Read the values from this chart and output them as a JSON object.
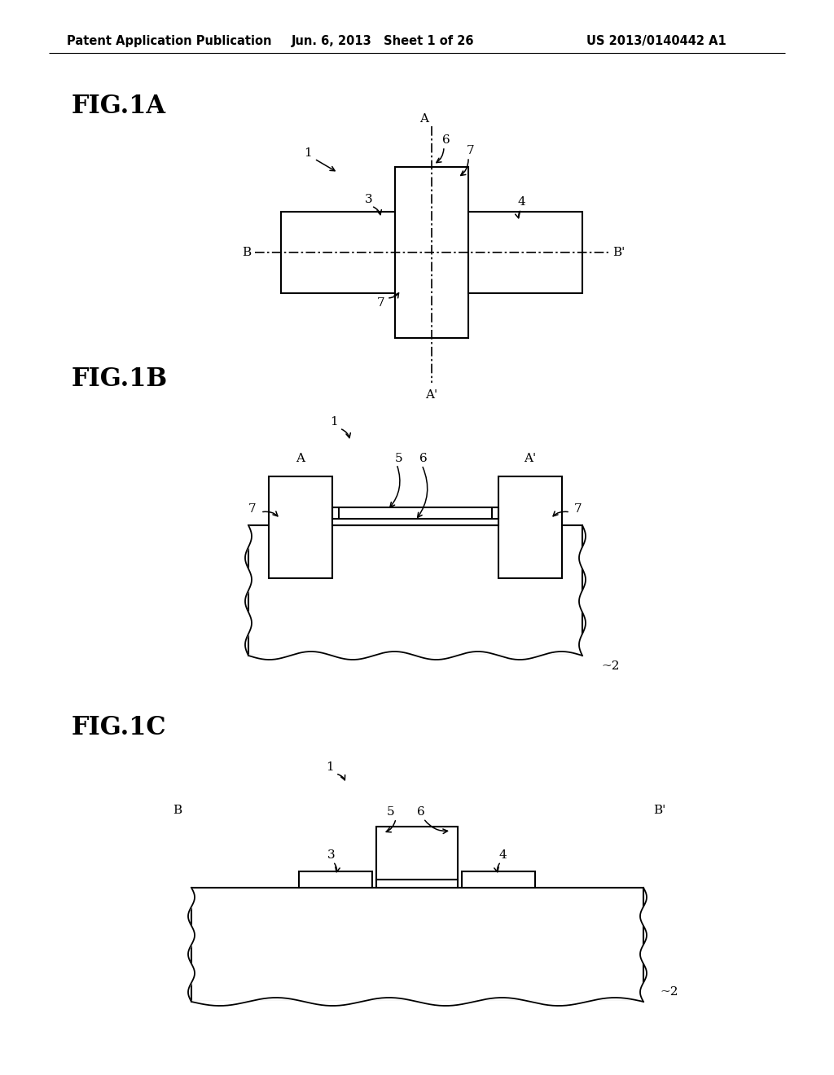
{
  "title_left": "Patent Application Publication",
  "title_mid": "Jun. 6, 2013   Sheet 1 of 26",
  "title_right": "US 2013/0140442 A1",
  "bg_color": "#ffffff",
  "line_color": "#000000"
}
